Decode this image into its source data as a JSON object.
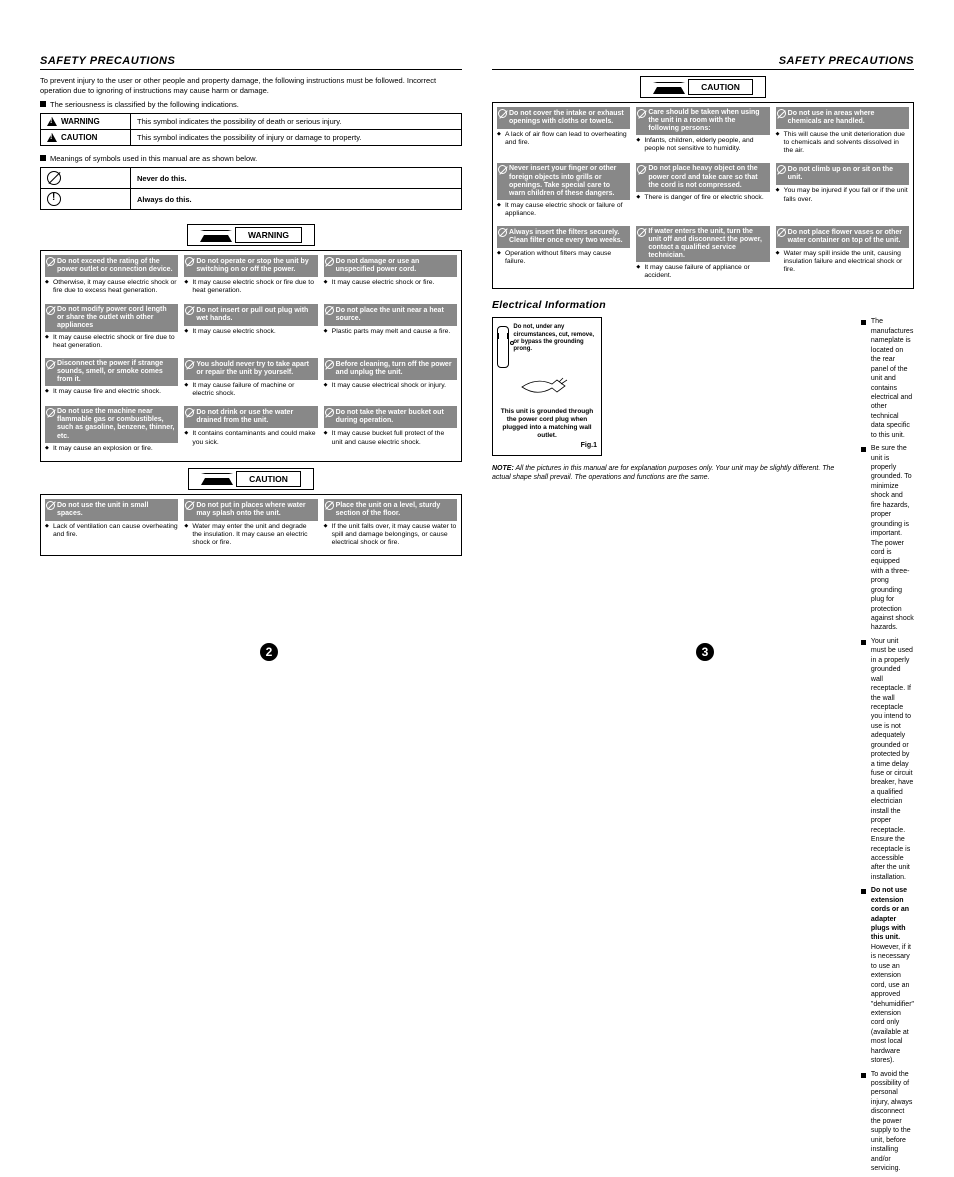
{
  "header": "SAFETY PRECAUTIONS",
  "intro": "To prevent injury to the user or other people and property damage, the following instructions must be followed. Incorrect operation due to ignoring of instructions may cause harm or damage.",
  "serious": "The seriousness is classified by the following indications.",
  "legend": {
    "warning_label": "WARNING",
    "warning_text": "This symbol indicates the possibility of death or serious injury.",
    "caution_label": "CAUTION",
    "caution_text": "This symbol indicates the possibility of injury or damage to property."
  },
  "meanings": "Meanings of symbols used in this manual are as shown below.",
  "never": "Never do this.",
  "always": "Always do this.",
  "sec_warning": "WARNING",
  "sec_caution": "CAUTION",
  "warn_grid": [
    {
      "t": "Do not exceed the rating of the power outlet or connection device.",
      "b": "Otherwise, it may cause electric shock or fire due to excess heat generation."
    },
    {
      "t": "Do not operate or stop the unit by switching on or off the power.",
      "b": "It may cause electric shock or fire due to heat generation."
    },
    {
      "t": "Do not damage or use an unspecified power cord.",
      "b": "It may cause electric shock or fire."
    },
    {
      "t": "Do not modify power cord length or share the outlet with other appliances",
      "b": "It may cause electric shock or fire due to heat generation."
    },
    {
      "t": "Do not insert or pull out plug with wet hands.",
      "b": "It may cause electric shock."
    },
    {
      "t": "Do not place the unit near a heat source.",
      "b": "Plastic parts may melt and cause a fire."
    },
    {
      "t": "Disconnect the power if strange sounds, smell, or smoke comes from it.",
      "b": "It may cause fire and electric shock."
    },
    {
      "t": "You should never try to take apart or repair the unit by yourself.",
      "b": "It may cause failure of machine or electric shock."
    },
    {
      "t": "Before cleaning, turn off the power and unplug the unit.",
      "b": "It may cause electrical shock or injury."
    },
    {
      "t": "Do not use the machine near flammable gas or combustibles, such as gasoline, benzene, thinner, etc.",
      "b": "It may cause an explosion or fire."
    },
    {
      "t": "Do not drink or use the water drained from the unit.",
      "b": "It contains contaminants and could make you sick."
    },
    {
      "t": "Do not take the water bucket out during operation.",
      "b": "It may cause bucket full protect of the unit and cause electric shock."
    }
  ],
  "caution_left": [
    {
      "t": "Do not use the unit in small spaces.",
      "b": "Lack of ventilation can cause overheating and fire."
    },
    {
      "t": "Do not put in places where water may splash onto the unit.",
      "b": "Water may enter the unit and degrade the insulation. It may cause an electric shock or fire."
    },
    {
      "t": "Place the unit on a level, sturdy section of the floor.",
      "b": "If the unit falls over, it may cause water to spill and damage belongings, or cause electrical shock or fire."
    }
  ],
  "caution_right": [
    {
      "t": "Do not cover the intake or exhaust openings with cloths or towels.",
      "b": "A lack of air flow can lead to overheating and fire."
    },
    {
      "t": "Care should be taken when using the unit in a room with the following persons:",
      "b": "Infants, children, elderly people, and people not sensitive to humidity."
    },
    {
      "t": "Do not use in areas where chemicals are handled.",
      "b": "This will cause the unit deterioration due to chemicals and solvents dissolved in the air."
    },
    {
      "t": "Never insert your finger or other foreign objects into grills or openings. Take special care to warn children of these dangers.",
      "b": "It may cause electric shock or failure of appliance."
    },
    {
      "t": "Do not place heavy object on the power cord and take care so that the cord is not compressed.",
      "b": "There is danger of fire or electric shock."
    },
    {
      "t": "Do not climb up on or sit on the unit.",
      "b": "You may be injured if you fall or if the unit falls over."
    },
    {
      "t": "Always insert the filters securely. Clean filter once every two weeks.",
      "b": "Operation without filters may cause failure."
    },
    {
      "t": "If water enters the unit, turn the unit off and disconnect the power, contact a qualified service technician.",
      "b": "It may cause failure of appliance or accident."
    },
    {
      "t": "Do not place flower vases or other water container on top of the unit.",
      "b": "Water may spill inside the unit, causing insulation failure and electrical shock or fire."
    }
  ],
  "elec_header": "Electrical Information",
  "fig_warn": "Do not, under any circumstances, cut, remove, or bypass the grounding prong.",
  "fig_caption": "This unit is grounded through the power cord plug when plugged into a matching wall outlet.",
  "fig_label": "Fig.1",
  "note_label": "NOTE:",
  "note_text": "All the pictures in this manual are for explanation purposes only. Your unit may be slightly different. The actual shape shall prevail. The operations and functions are the same.",
  "elec_bullets": [
    "The manufactures nameplate is located on the rear panel of the unit and contains electrical and other technical data specific to this unit.",
    "Be sure the unit is properly grounded. To minimize shock and fire hazards, proper grounding is important. The power cord is equipped with a three-prong grounding plug for protection against shock hazards.",
    "Your unit must be used in a properly grounded wall receptacle. If the wall receptacle you intend to use is not adequately grounded or protected by a time delay fuse or circuit breaker, have a qualified electrician install the proper receptacle. Ensure the receptacle is accessible after the unit installation.",
    "Do not use extension cords or an adapter plugs with this unit. However, if it is necessary to use an extension cord, use an approved \"dehumidifier\" extension cord only (available at most local hardware stores).",
    "To avoid the possibility of personal injury, always disconnect the power supply to the unit, before installing and/or servicing."
  ],
  "page2": "2",
  "page3": "3"
}
